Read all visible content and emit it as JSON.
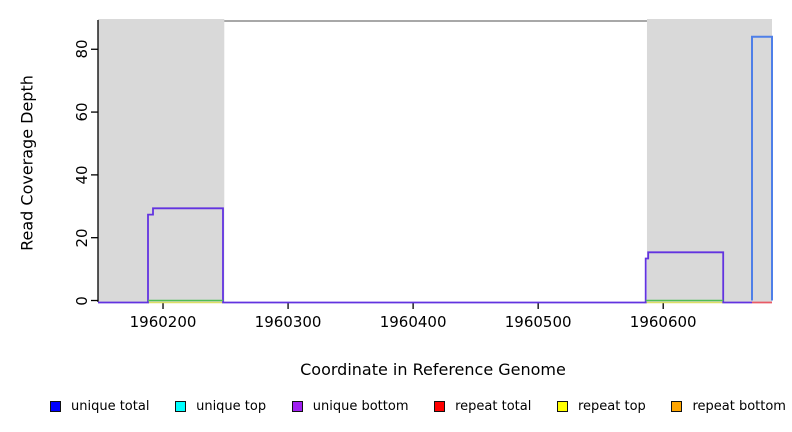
{
  "chart_data": {
    "type": "line",
    "subtype": "step-coverage-plot",
    "title": "",
    "xlabel": "Coordinate in Reference Genome",
    "ylabel": "Read Coverage Depth",
    "xlim": [
      1960148,
      1960687
    ],
    "ylim": [
      0,
      89
    ],
    "x_ticks": [
      1960200,
      1960300,
      1960400,
      1960500,
      1960600
    ],
    "y_ticks": [
      0,
      20,
      40,
      60,
      80
    ],
    "grid": false,
    "background_shading": {
      "color": "#D9D9D9",
      "regions": [
        [
          1960148,
          1960249
        ],
        [
          1960587,
          1960687
        ]
      ]
    },
    "top_boundary_line": {
      "y": 89,
      "color": "#8C8C8C"
    },
    "series": [
      {
        "name": "unique total step (right edge)",
        "color": "#4E7FE8",
        "width": 2,
        "dy": 0,
        "points": [
          [
            1960671,
            0
          ],
          [
            1960671,
            84
          ],
          [
            1960687,
            84
          ],
          [
            1960687,
            0
          ]
        ]
      },
      {
        "name": "repeat top baseline (left repeat region)",
        "color": "#Dede66",
        "width": 1.5,
        "dy": 2,
        "points": [
          [
            1960188,
            0
          ],
          [
            1960248,
            0
          ]
        ]
      },
      {
        "name": "repeat top baseline (right repeat region)",
        "color": "#DEDE66",
        "width": 1.5,
        "dy": 2,
        "points": [
          [
            1960586,
            0
          ],
          [
            1960648,
            0
          ]
        ]
      },
      {
        "name": "repeat total baseline (right edge)",
        "color": "#E85A66",
        "width": 1.8,
        "dy": 2,
        "points": [
          [
            1960671,
            0
          ],
          [
            1960687,
            0
          ]
        ]
      },
      {
        "name": "unique bottom coverage trace",
        "color": "#6233E0",
        "width": 1.8,
        "dy": 2,
        "points": [
          [
            1960148,
            0
          ],
          [
            1960188,
            0
          ],
          [
            1960188,
            28
          ],
          [
            1960192,
            28
          ],
          [
            1960192,
            30
          ],
          [
            1960248,
            30
          ],
          [
            1960248,
            0
          ],
          [
            1960586,
            0
          ],
          [
            1960586,
            14
          ],
          [
            1960588,
            14
          ],
          [
            1960588,
            16
          ],
          [
            1960648,
            16
          ],
          [
            1960648,
            0
          ],
          [
            1960671,
            0
          ]
        ]
      },
      {
        "name": "green baseline (left bump extent)",
        "color": "#4FBD57",
        "width": 1.5,
        "dy": 0,
        "points": [
          [
            1960188,
            0
          ],
          [
            1960248,
            0
          ]
        ]
      },
      {
        "name": "green baseline (right bump extent)",
        "color": "#4FBD57",
        "width": 1.5,
        "dy": 0,
        "points": [
          [
            1960586,
            0
          ],
          [
            1960648,
            0
          ]
        ]
      }
    ],
    "legend": {
      "position": "bottom",
      "items": [
        {
          "label": "unique total",
          "color": "#0000FF"
        },
        {
          "label": "unique top",
          "color": "#00FFFF"
        },
        {
          "label": "unique bottom",
          "color": "#A020F0"
        },
        {
          "label": "repeat total",
          "color": "#FF0000"
        },
        {
          "label": "repeat top",
          "color": "#FFFF00"
        },
        {
          "label": "repeat bottom",
          "color": "#FFA500"
        }
      ]
    }
  }
}
